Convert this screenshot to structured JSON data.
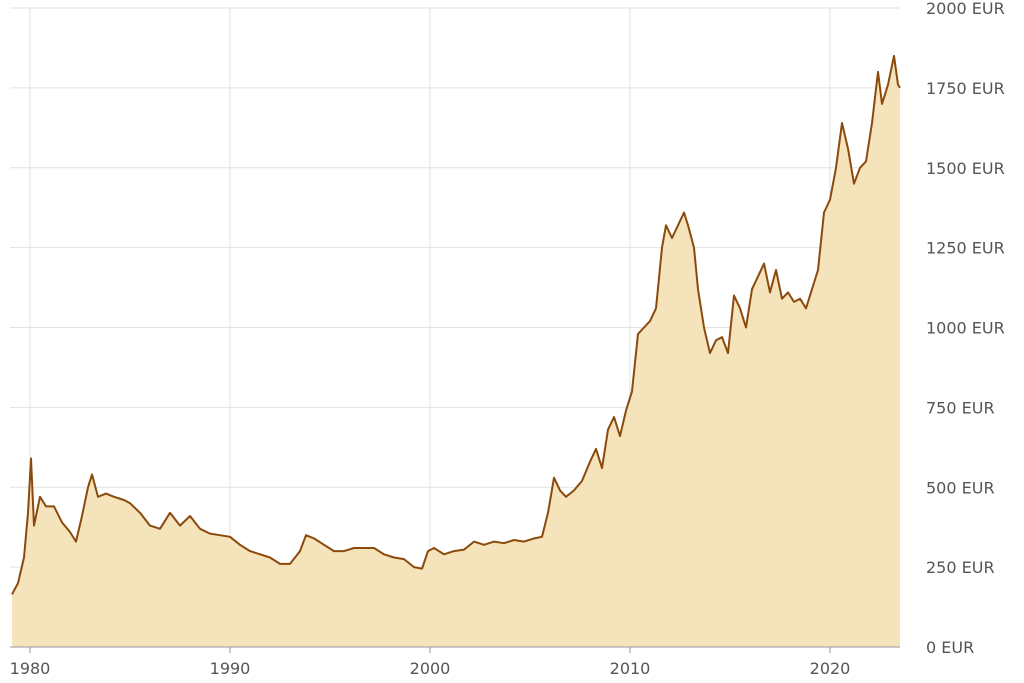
{
  "chart_data": {
    "type": "area",
    "title": "",
    "xlabel": "",
    "ylabel": "",
    "x_ticks": [
      1980,
      1990,
      2000,
      2010,
      2020
    ],
    "y_ticks": [
      {
        "value": 0,
        "label": "0 EUR"
      },
      {
        "value": 250,
        "label": "250 EUR"
      },
      {
        "value": 500,
        "label": "500 EUR"
      },
      {
        "value": 750,
        "label": "750 EUR"
      },
      {
        "value": 1000,
        "label": "1000 EUR"
      },
      {
        "value": 1250,
        "label": "1250 EUR"
      },
      {
        "value": 1500,
        "label": "1500 EUR"
      },
      {
        "value": 1750,
        "label": "1750 EUR"
      },
      {
        "value": 2000,
        "label": "2000 EUR"
      }
    ],
    "xlim": [
      1979.0,
      2023.5
    ],
    "ylim": [
      0,
      2000
    ],
    "grid": true,
    "y_axis_side": "right",
    "colors": {
      "line": "#8b4a0b",
      "fill": "#f5e3bb",
      "grid": "#e2e2e2",
      "axis": "#999999"
    },
    "series": [
      {
        "points": [
          [
            1979.1,
            165
          ],
          [
            1979.4,
            200
          ],
          [
            1979.7,
            280
          ],
          [
            1979.9,
            420
          ],
          [
            1980.05,
            590
          ],
          [
            1980.2,
            380
          ],
          [
            1980.5,
            470
          ],
          [
            1980.8,
            440
          ],
          [
            1981.2,
            440
          ],
          [
            1981.6,
            390
          ],
          [
            1982.0,
            360
          ],
          [
            1982.3,
            330
          ],
          [
            1982.6,
            410
          ],
          [
            1982.9,
            500
          ],
          [
            1983.1,
            540
          ],
          [
            1983.4,
            470
          ],
          [
            1983.8,
            480
          ],
          [
            1984.2,
            470
          ],
          [
            1984.7,
            460
          ],
          [
            1985.0,
            450
          ],
          [
            1985.5,
            420
          ],
          [
            1986.0,
            380
          ],
          [
            1986.5,
            370
          ],
          [
            1987.0,
            420
          ],
          [
            1987.5,
            380
          ],
          [
            1988.0,
            410
          ],
          [
            1988.5,
            370
          ],
          [
            1989.0,
            355
          ],
          [
            1989.5,
            350
          ],
          [
            1990.0,
            345
          ],
          [
            1990.5,
            320
          ],
          [
            1991.0,
            300
          ],
          [
            1991.5,
            290
          ],
          [
            1992.0,
            280
          ],
          [
            1992.5,
            260
          ],
          [
            1993.0,
            260
          ],
          [
            1993.5,
            300
          ],
          [
            1993.8,
            350
          ],
          [
            1994.2,
            340
          ],
          [
            1994.7,
            320
          ],
          [
            1995.2,
            300
          ],
          [
            1995.7,
            300
          ],
          [
            1996.2,
            310
          ],
          [
            1996.7,
            310
          ],
          [
            1997.2,
            310
          ],
          [
            1997.7,
            290
          ],
          [
            1998.2,
            280
          ],
          [
            1998.7,
            275
          ],
          [
            1999.2,
            250
          ],
          [
            1999.6,
            245
          ],
          [
            1999.9,
            300
          ],
          [
            2000.2,
            310
          ],
          [
            2000.7,
            290
          ],
          [
            2001.2,
            300
          ],
          [
            2001.7,
            305
          ],
          [
            2002.2,
            330
          ],
          [
            2002.7,
            320
          ],
          [
            2003.2,
            330
          ],
          [
            2003.7,
            325
          ],
          [
            2004.2,
            335
          ],
          [
            2004.7,
            330
          ],
          [
            2005.2,
            340
          ],
          [
            2005.6,
            345
          ],
          [
            2005.9,
            420
          ],
          [
            2006.2,
            530
          ],
          [
            2006.5,
            490
          ],
          [
            2006.8,
            470
          ],
          [
            2007.2,
            490
          ],
          [
            2007.6,
            520
          ],
          [
            2008.0,
            580
          ],
          [
            2008.3,
            620
          ],
          [
            2008.6,
            560
          ],
          [
            2008.9,
            680
          ],
          [
            2009.2,
            720
          ],
          [
            2009.5,
            660
          ],
          [
            2009.8,
            740
          ],
          [
            2010.1,
            800
          ],
          [
            2010.4,
            980
          ],
          [
            2010.7,
            1000
          ],
          [
            2011.0,
            1020
          ],
          [
            2011.3,
            1060
          ],
          [
            2011.6,
            1250
          ],
          [
            2011.8,
            1320
          ],
          [
            2012.1,
            1280
          ],
          [
            2012.4,
            1320
          ],
          [
            2012.7,
            1360
          ],
          [
            2012.9,
            1320
          ],
          [
            2013.2,
            1250
          ],
          [
            2013.4,
            1120
          ],
          [
            2013.7,
            1000
          ],
          [
            2014.0,
            920
          ],
          [
            2014.3,
            960
          ],
          [
            2014.6,
            970
          ],
          [
            2014.9,
            920
          ],
          [
            2015.2,
            1100
          ],
          [
            2015.5,
            1060
          ],
          [
            2015.8,
            1000
          ],
          [
            2016.1,
            1120
          ],
          [
            2016.4,
            1160
          ],
          [
            2016.7,
            1200
          ],
          [
            2017.0,
            1110
          ],
          [
            2017.3,
            1180
          ],
          [
            2017.6,
            1090
          ],
          [
            2017.9,
            1110
          ],
          [
            2018.2,
            1080
          ],
          [
            2018.5,
            1090
          ],
          [
            2018.8,
            1060
          ],
          [
            2019.1,
            1120
          ],
          [
            2019.4,
            1180
          ],
          [
            2019.7,
            1360
          ],
          [
            2020.0,
            1400
          ],
          [
            2020.3,
            1500
          ],
          [
            2020.6,
            1640
          ],
          [
            2020.9,
            1560
          ],
          [
            2021.2,
            1450
          ],
          [
            2021.5,
            1500
          ],
          [
            2021.8,
            1520
          ],
          [
            2022.1,
            1640
          ],
          [
            2022.4,
            1800
          ],
          [
            2022.6,
            1700
          ],
          [
            2022.9,
            1760
          ],
          [
            2023.2,
            1850
          ],
          [
            2023.4,
            1760
          ],
          [
            2023.5,
            1750
          ]
        ]
      }
    ]
  }
}
